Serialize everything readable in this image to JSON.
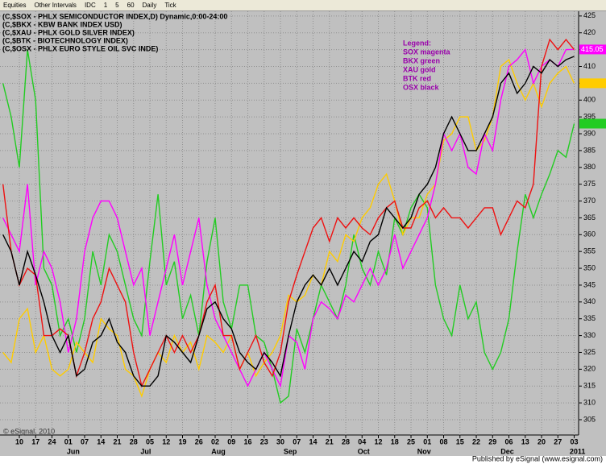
{
  "toolbar": {
    "items": [
      "Equities",
      "Other Intervals",
      "IDC",
      "1",
      "5",
      "60",
      "Daily",
      "Tick"
    ]
  },
  "footer": "Published by eSignal (www.esignal.com)",
  "copyright": "© eSignal, 2010",
  "chart_data": {
    "type": "line",
    "legend_text": [
      "Legend:",
      "SOX magenta",
      "BKX green",
      "XAU gold",
      "BTK red",
      "OSX black"
    ],
    "legend_color": "#9900aa",
    "grid": true,
    "x": [
      -1,
      -0.5,
      0,
      0.5,
      1,
      1.5,
      2,
      2.5,
      3,
      3.5,
      4,
      4.5,
      5,
      5.5,
      6,
      6.5,
      7,
      7.5,
      8,
      8.5,
      9,
      9.5,
      10,
      10.5,
      11,
      11.5,
      12,
      12.5,
      13,
      13.5,
      14,
      14.5,
      15,
      15.5,
      16,
      16.5,
      17,
      17.5,
      18,
      18.5,
      19,
      19.5,
      20,
      20.5,
      21,
      21.5,
      22,
      22.5,
      23,
      23.5,
      24,
      24.5,
      25,
      25.5,
      26,
      26.5,
      27,
      27.5,
      28,
      28.5,
      29,
      29.5,
      30,
      30.5,
      31,
      31.5,
      32,
      32.5,
      33,
      33.5,
      34
    ],
    "xlim": [
      -1.185,
      34.27
    ],
    "xticks": [
      {
        "value": 0,
        "label": "10"
      },
      {
        "value": 1,
        "label": "17"
      },
      {
        "value": 2,
        "label": "24"
      },
      {
        "value": 3,
        "label": "01"
      },
      {
        "value": 4,
        "label": "07"
      },
      {
        "value": 5,
        "label": "14"
      },
      {
        "value": 6,
        "label": "21"
      },
      {
        "value": 7,
        "label": "28"
      },
      {
        "value": 8,
        "label": "05"
      },
      {
        "value": 9,
        "label": "12"
      },
      {
        "value": 10,
        "label": "19"
      },
      {
        "value": 11,
        "label": "26"
      },
      {
        "value": 12,
        "label": "02"
      },
      {
        "value": 13,
        "label": "09"
      },
      {
        "value": 14,
        "label": "16"
      },
      {
        "value": 15,
        "label": "23"
      },
      {
        "value": 16,
        "label": "30"
      },
      {
        "value": 17,
        "label": "07"
      },
      {
        "value": 18,
        "label": "14"
      },
      {
        "value": 19,
        "label": "21"
      },
      {
        "value": 20,
        "label": "28"
      },
      {
        "value": 21,
        "label": "04"
      },
      {
        "value": 22,
        "label": "12"
      },
      {
        "value": 23,
        "label": "18"
      },
      {
        "value": 24,
        "label": "25"
      },
      {
        "value": 25,
        "label": "01"
      },
      {
        "value": 26,
        "label": "08"
      },
      {
        "value": 27,
        "label": "15"
      },
      {
        "value": 28,
        "label": "22"
      },
      {
        "value": 29,
        "label": "29"
      },
      {
        "value": 30,
        "label": "06"
      },
      {
        "value": 31,
        "label": "13"
      },
      {
        "value": 32,
        "label": "20"
      },
      {
        "value": 33,
        "label": "27"
      },
      {
        "value": 34,
        "label": "03"
      }
    ],
    "month_ticks": [
      {
        "value": 3.3,
        "label": "Jun"
      },
      {
        "value": 7.75,
        "label": "Jul"
      },
      {
        "value": 12.2,
        "label": "Aug"
      },
      {
        "value": 16.6,
        "label": "Sep"
      },
      {
        "value": 21.1,
        "label": "Oct"
      },
      {
        "value": 24.8,
        "label": "Nov"
      },
      {
        "value": 29.9,
        "label": "Dec"
      },
      {
        "value": 34.2,
        "label": "2011"
      }
    ],
    "ylim": [
      300.45,
      426.4
    ],
    "yticks": [
      305,
      310,
      315,
      320,
      325,
      330,
      335,
      340,
      345,
      350,
      355,
      360,
      365,
      370,
      375,
      380,
      385,
      390,
      395,
      400,
      405,
      410,
      415,
      420,
      425
    ],
    "series": [
      {
        "name": "(C,$BKX - KBW BANK INDEX USD)",
        "color": "#22cc22",
        "values": [
          405,
          395,
          380,
          415,
          400,
          350,
          345,
          330,
          335,
          325,
          335,
          355,
          345,
          360,
          355,
          345,
          335,
          330,
          352,
          372,
          345,
          352,
          335,
          342,
          330,
          352,
          365,
          340,
          332,
          345,
          345,
          330,
          328,
          320,
          310,
          312,
          332,
          325,
          335,
          345,
          340,
          335,
          345,
          360,
          350,
          345,
          355,
          348,
          365,
          360,
          368,
          372,
          368,
          345,
          335,
          330,
          345,
          335,
          340,
          325,
          320,
          325,
          335,
          355,
          372,
          365,
          372,
          378,
          385,
          383,
          393
        ]
      },
      {
        "name": "(C,$XAU - PHLX GOLD SILVER INDEX)",
        "color": "#ffcc00",
        "values": [
          325,
          322,
          335,
          338,
          325,
          330,
          320,
          318,
          320,
          328,
          325,
          322,
          335,
          332,
          330,
          320,
          318,
          312,
          320,
          325,
          322,
          330,
          325,
          328,
          320,
          330,
          328,
          325,
          330,
          320,
          325,
          318,
          322,
          325,
          330,
          342,
          340,
          342,
          348,
          345,
          355,
          352,
          360,
          358,
          365,
          368,
          375,
          378,
          370,
          360,
          365,
          365,
          372,
          375,
          388,
          390,
          395,
          395,
          385,
          388,
          395,
          410,
          412,
          405,
          400,
          405,
          398,
          405,
          408,
          410,
          405
        ]
      },
      {
        "name": "(C,$SOX - PHLX SEMICONDUCTOR INDEX,D) Dynamic,0:00-24:00",
        "color": "#ff00ff",
        "values": [
          365,
          360,
          355,
          375,
          345,
          355,
          350,
          340,
          325,
          335,
          355,
          365,
          370,
          370,
          365,
          355,
          345,
          350,
          330,
          340,
          350,
          360,
          345,
          355,
          365,
          345,
          335,
          330,
          325,
          320,
          315,
          320,
          325,
          320,
          315,
          330,
          328,
          320,
          335,
          340,
          338,
          335,
          342,
          340,
          345,
          350,
          345,
          350,
          360,
          350,
          355,
          360,
          365,
          375,
          390,
          385,
          390,
          380,
          378,
          390,
          385,
          400,
          410,
          412,
          415,
          405,
          410,
          412,
          410,
          415,
          415.05
        ],
        "last_label": "415.05"
      },
      {
        "name": "(C,$BTK - BIOTECHNOLOGY INDEX)",
        "color": "#ee1111",
        "values": [
          375,
          355,
          345,
          350,
          348,
          330,
          330,
          332,
          330,
          318,
          325,
          335,
          340,
          350,
          345,
          340,
          325,
          315,
          320,
          325,
          330,
          325,
          330,
          325,
          330,
          340,
          345,
          330,
          330,
          320,
          325,
          330,
          322,
          318,
          325,
          340,
          348,
          355,
          362,
          365,
          358,
          365,
          362,
          365,
          362,
          360,
          365,
          368,
          370,
          362,
          362,
          368,
          370,
          365,
          368,
          365,
          365,
          362,
          365,
          368,
          368,
          360,
          365,
          370,
          368,
          375,
          410,
          418,
          415,
          418,
          415
        ]
      },
      {
        "name": "(C,$OSX - PHLX EURO STYLE OIL SVC INDE)",
        "color": "#000000",
        "values": [
          360,
          355,
          345,
          355,
          348,
          340,
          330,
          325,
          330,
          318,
          320,
          328,
          330,
          335,
          328,
          325,
          318,
          315,
          315,
          318,
          330,
          328,
          325,
          322,
          330,
          338,
          340,
          335,
          332,
          325,
          322,
          320,
          325,
          322,
          318,
          330,
          340,
          345,
          348,
          345,
          350,
          345,
          350,
          355,
          352,
          358,
          360,
          368,
          365,
          362,
          365,
          372,
          375,
          380,
          390,
          395,
          390,
          385,
          385,
          390,
          395,
          405,
          408,
          402,
          405,
          410,
          408,
          412,
          410,
          412,
          413
        ]
      }
    ],
    "header_order": [
      2,
      0,
      1,
      3,
      4
    ]
  }
}
